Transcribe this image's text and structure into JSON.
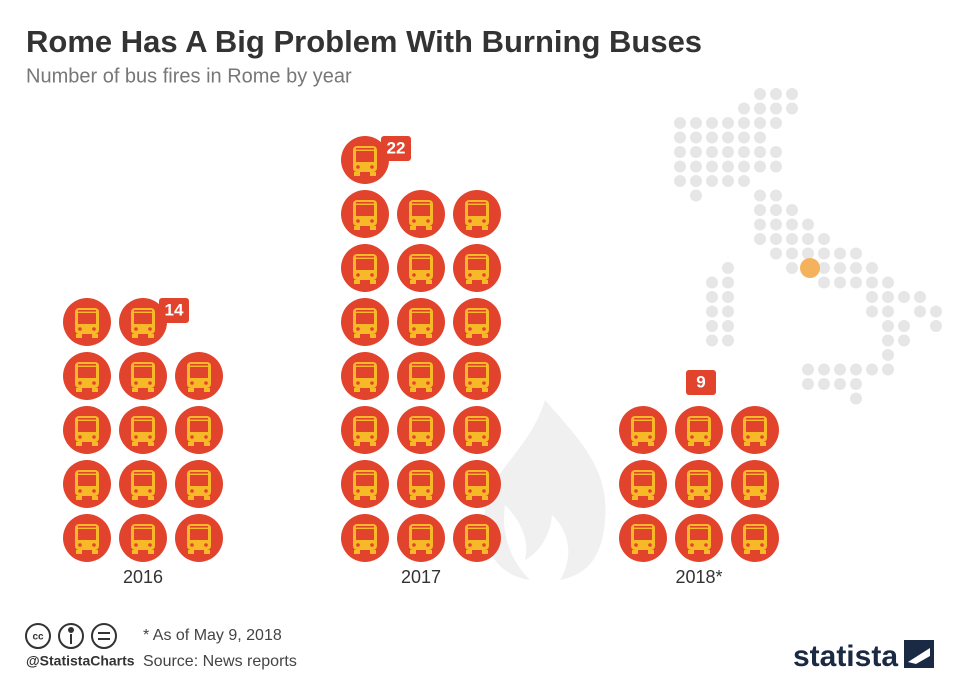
{
  "chart_data": {
    "type": "pictogram",
    "title": "Rome Has A Big Problem With Burning Buses",
    "subtitle": "Number of bus fires in Rome by year",
    "categories": [
      "2016",
      "2017",
      "2018*"
    ],
    "values": [
      14,
      22,
      9
    ],
    "color": "#e2432c",
    "icon_color": "#f7b928",
    "footnote": "* As of May 9, 2018",
    "source": "Source: News reports",
    "credit": "@StatistaCharts",
    "brand": "statista"
  }
}
